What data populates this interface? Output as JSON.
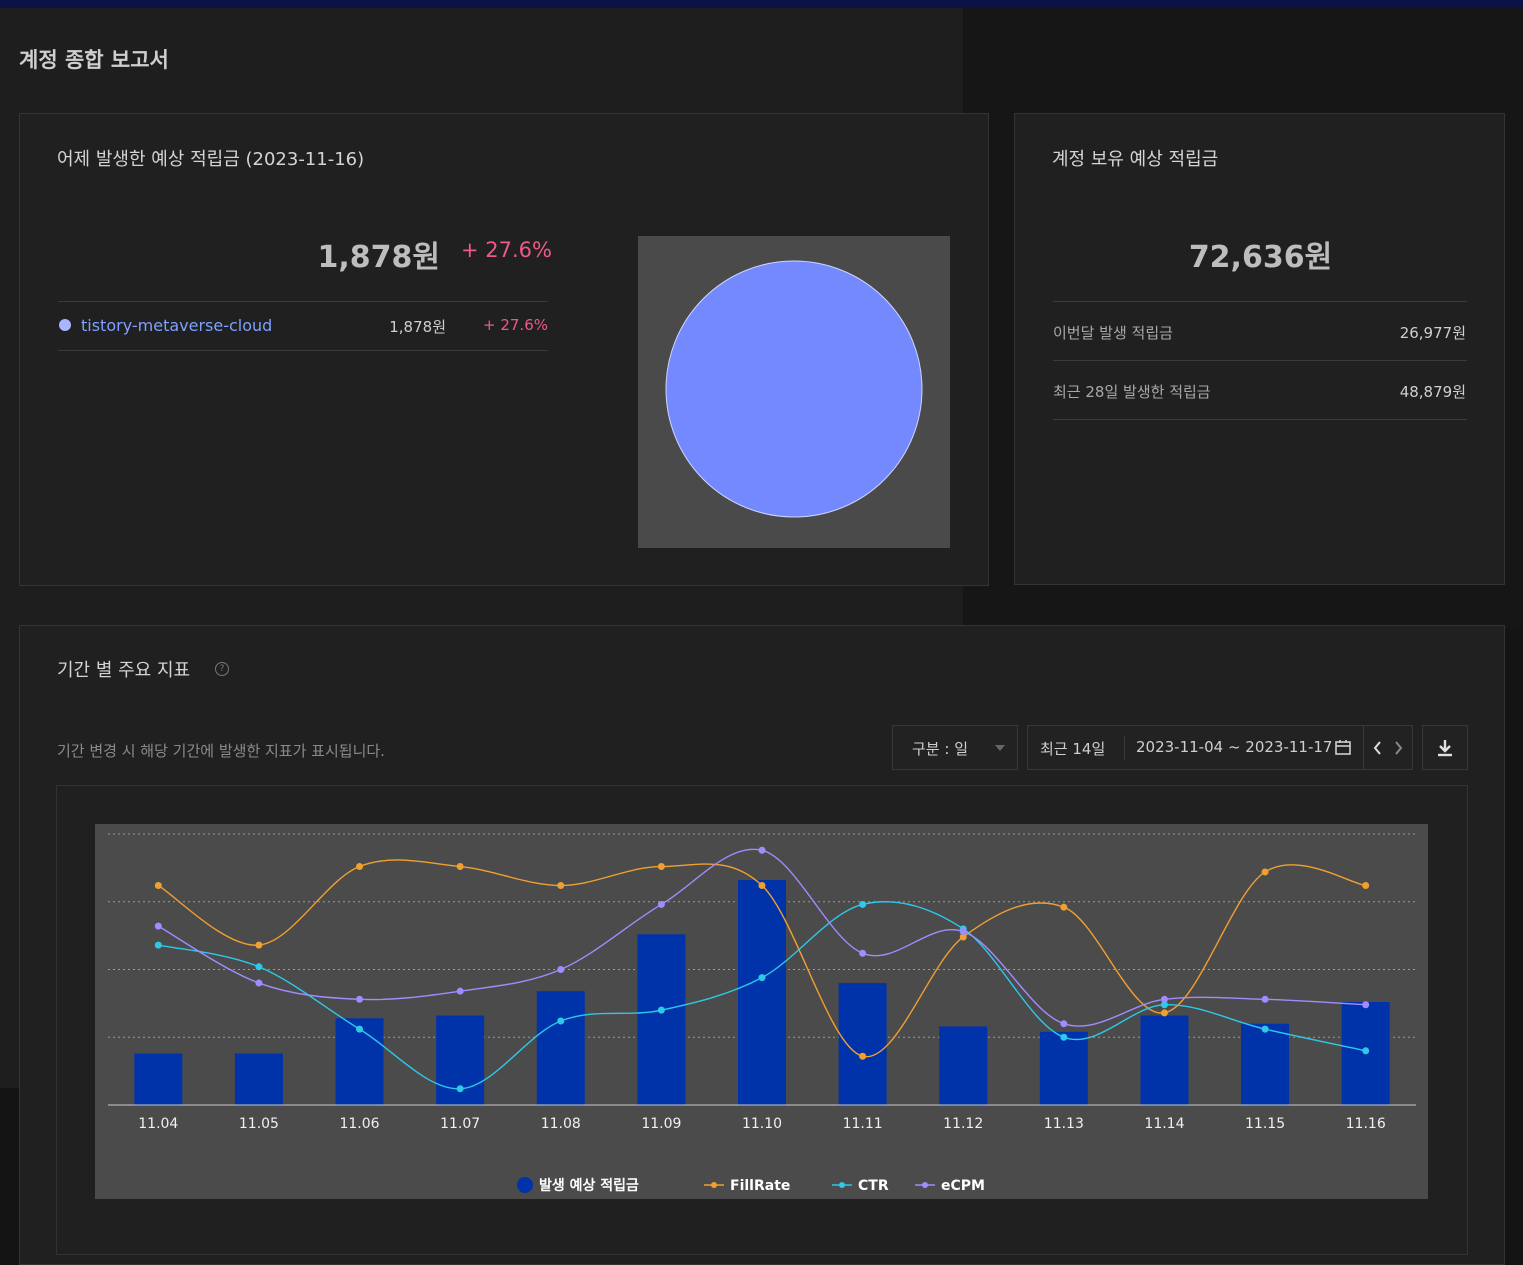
{
  "page": {
    "title": "계정 종합 보고서"
  },
  "yesterday": {
    "title": "어제 발생한 예상 적립금 (2023-11-16)",
    "total": "1,878원",
    "change": "+ 27.6%",
    "sites": [
      {
        "name": "tistory-metaverse-cloud",
        "amount": "1,878원",
        "change": "+ 27.6%",
        "color": "#7589ff"
      }
    ]
  },
  "balance": {
    "title": "계정 보유 예상 적립금",
    "total": "72,636원",
    "rows": [
      {
        "label": "이번달 발생 적립금",
        "value": "26,977원"
      },
      {
        "label": "최근 28일 발생한 적립금",
        "value": "48,879원"
      }
    ]
  },
  "period": {
    "title": "기간 별 주요 지표",
    "help_icon": "question-circle-icon",
    "description": "기간 변경 시 해당 기간에 발생한 지표가 표시됩니다.",
    "group_select": "구분 : 일",
    "range_label": "최근 14일",
    "date_range": "2023-11-04 ~ 2023-11-17"
  },
  "chart_data": {
    "type": "bar",
    "categories": [
      "11.04",
      "11.05",
      "11.06",
      "11.07",
      "11.08",
      "11.09",
      "11.10",
      "11.11",
      "11.12",
      "11.13",
      "11.14",
      "11.15",
      "11.16"
    ],
    "series": [
      {
        "name": "발생 예상 적립금",
        "type": "bar",
        "color": "#0033aa",
        "values": [
          19,
          19,
          32,
          33,
          42,
          63,
          83,
          45,
          29,
          27,
          33,
          30,
          38
        ]
      },
      {
        "name": "FillRate",
        "type": "line",
        "color": "#f0a030",
        "values": [
          81,
          59,
          88,
          88,
          81,
          88,
          81,
          18,
          62,
          73,
          34,
          86,
          81
        ]
      },
      {
        "name": "CTR",
        "type": "line",
        "color": "#2ec8e8",
        "values": [
          59,
          51,
          28,
          6,
          31,
          35,
          47,
          74,
          65,
          25,
          37,
          28,
          20
        ]
      },
      {
        "name": "eCPM",
        "type": "line",
        "color": "#a08cff",
        "values": [
          66,
          45,
          39,
          42,
          50,
          74,
          94,
          56,
          64,
          30,
          39,
          39,
          37
        ]
      }
    ],
    "ylim": [
      0,
      100
    ],
    "gridlines": [
      25,
      50,
      75,
      100
    ]
  }
}
